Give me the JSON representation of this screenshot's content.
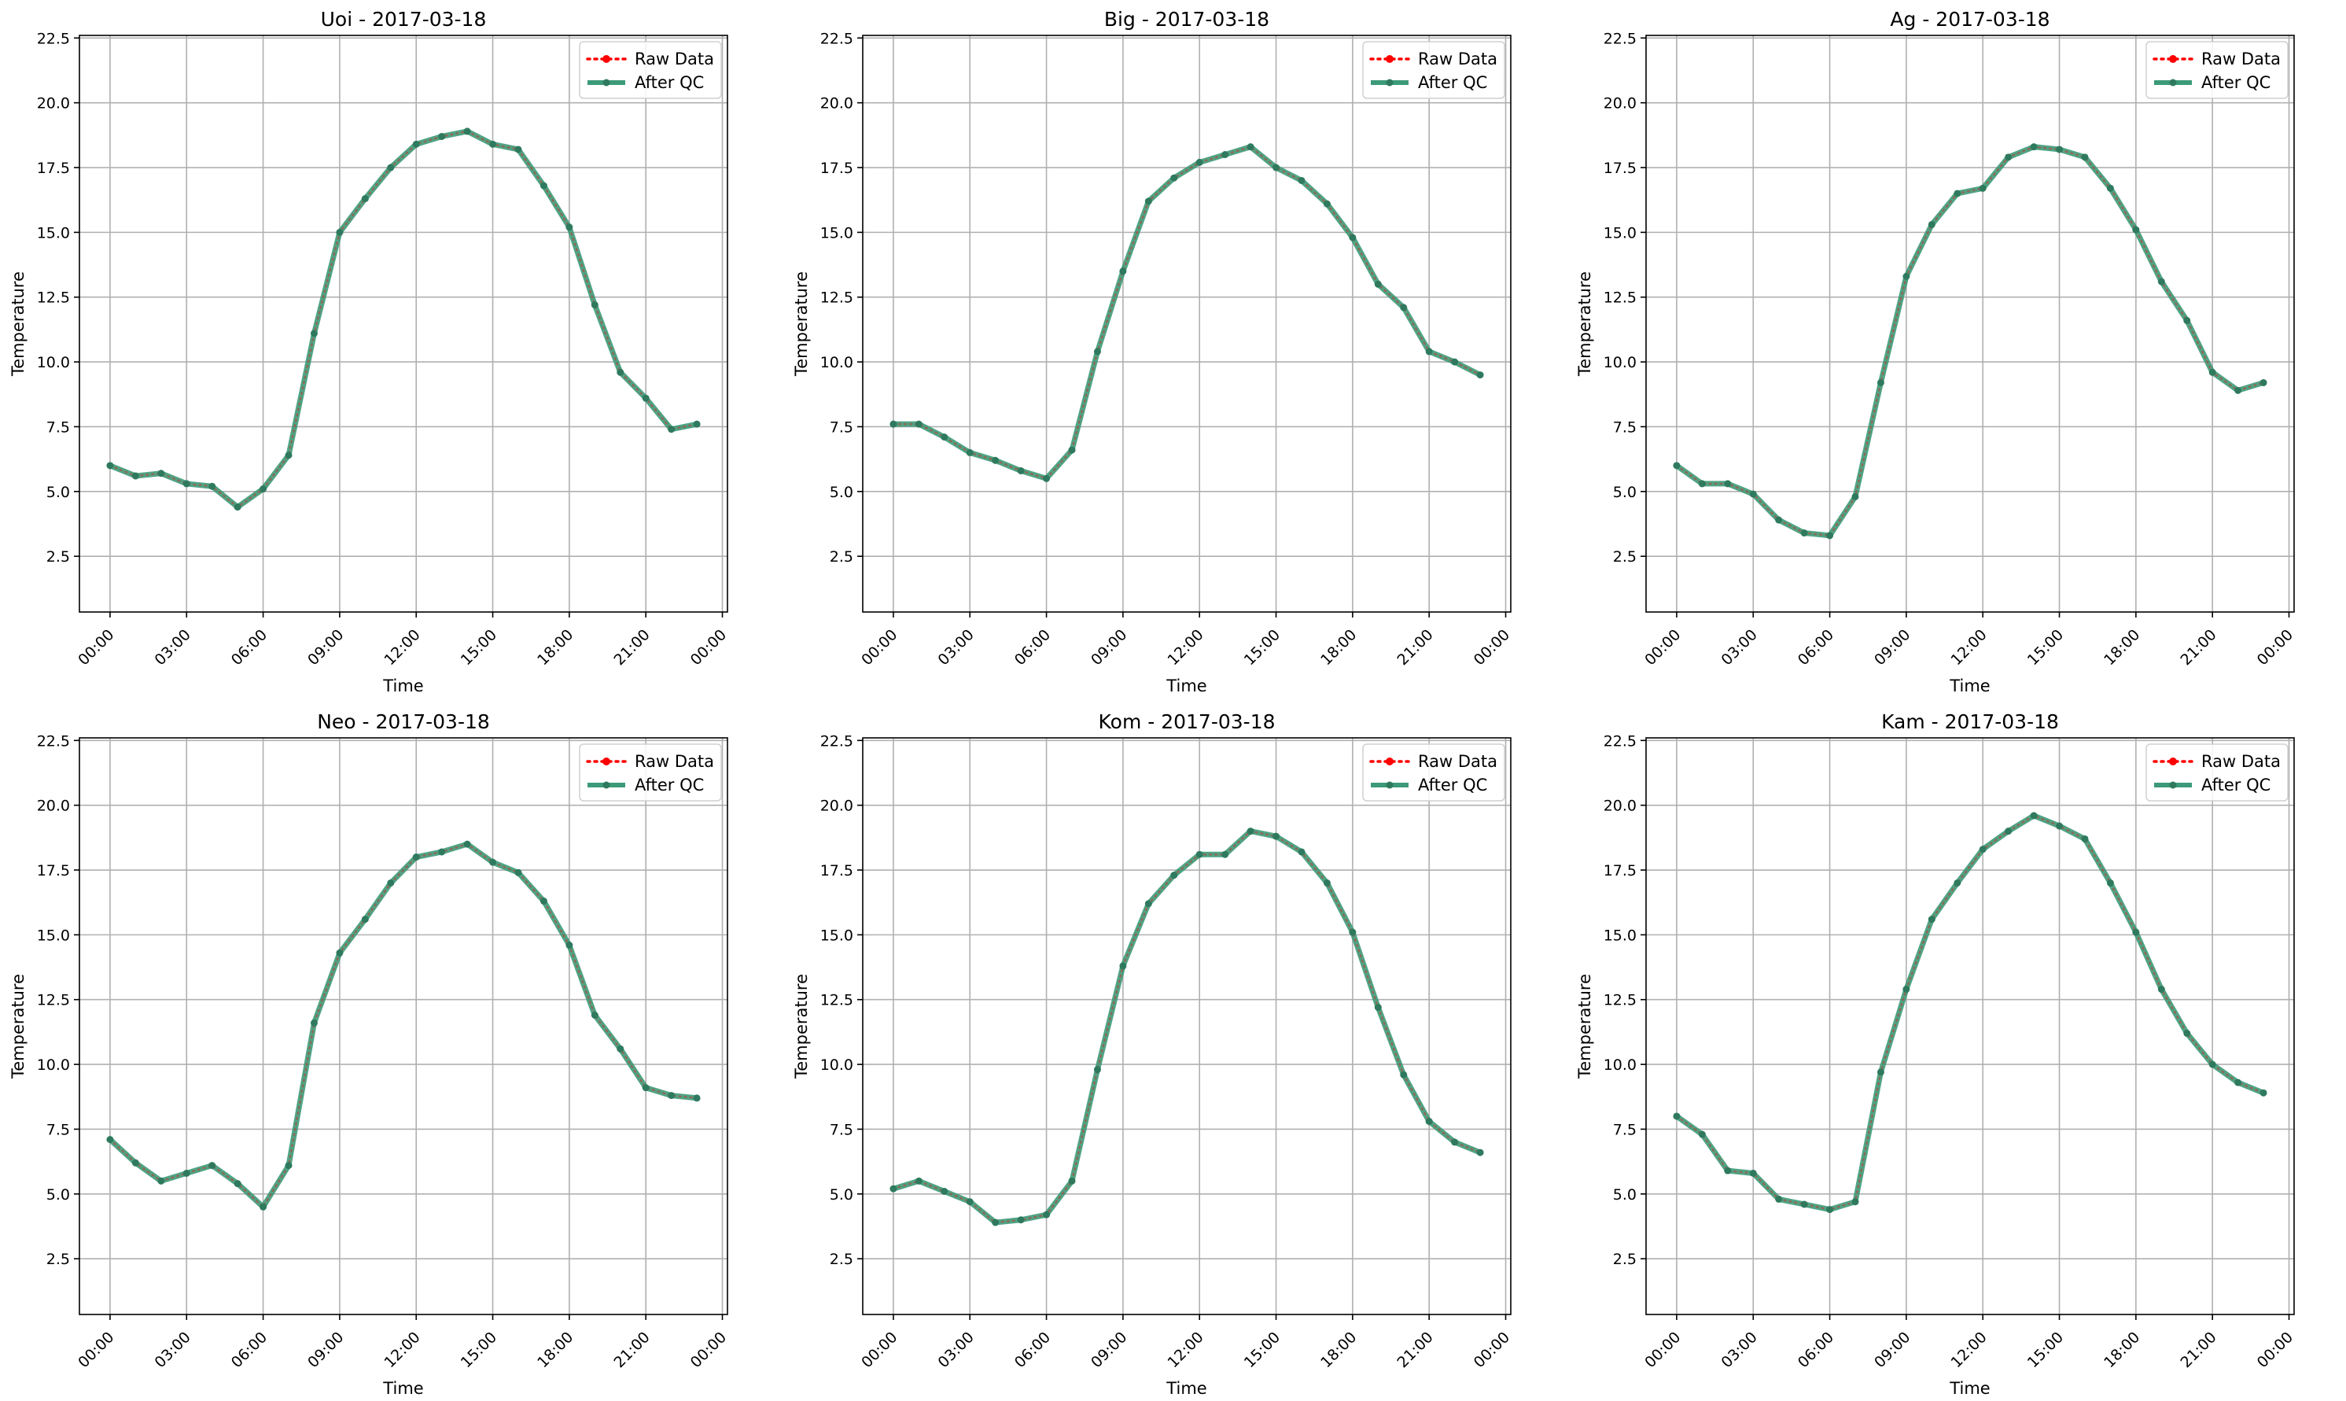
{
  "figure": {
    "xlabel": "Time",
    "ylabel": "Temperature",
    "legend": {
      "placement": "upper-right",
      "entries": [
        {
          "label": "Raw Data",
          "style": "dotted-red-points"
        },
        {
          "label": "After QC",
          "style": "solid-green-points"
        }
      ]
    },
    "colors": {
      "raw": "#ff0000",
      "qc": "#2ca02c",
      "qc_line": "#3c9a78",
      "marker": "#2f7a5e"
    }
  },
  "chart_data": [
    {
      "type": "line",
      "title": "Uoi - 2017-03-18",
      "xlabel": "Time",
      "ylabel": "Temperature",
      "x_ticks": [
        "00:00",
        "03:00",
        "06:00",
        "09:00",
        "12:00",
        "15:00",
        "18:00",
        "21:00",
        "00:00"
      ],
      "y_ticks": [
        "2.5",
        "5.0",
        "7.5",
        "10.0",
        "12.5",
        "15.0",
        "17.5",
        "20.0",
        "22.5"
      ],
      "xlim_hours": [
        -1.2,
        24.2
      ],
      "ylim": [
        0.35,
        22.6
      ],
      "grid": true,
      "x_hours": [
        0,
        1,
        2,
        3,
        4,
        5,
        6,
        7,
        8,
        9,
        10,
        11,
        12,
        13,
        14,
        15,
        16,
        17,
        18,
        19,
        20,
        21,
        22,
        23
      ],
      "series": [
        {
          "name": "Raw Data",
          "values": [
            6.0,
            5.6,
            5.7,
            5.3,
            5.2,
            4.4,
            5.1,
            6.4,
            11.1,
            15.0,
            16.3,
            17.5,
            18.4,
            18.7,
            18.9,
            18.4,
            18.2,
            16.8,
            15.2,
            12.2,
            9.6,
            8.6,
            7.4,
            7.6
          ]
        },
        {
          "name": "After QC",
          "values": [
            6.0,
            5.6,
            5.7,
            5.3,
            5.2,
            4.4,
            5.1,
            6.4,
            11.1,
            15.0,
            16.3,
            17.5,
            18.4,
            18.7,
            18.9,
            18.4,
            18.2,
            16.8,
            15.2,
            12.2,
            9.6,
            8.6,
            7.4,
            7.6
          ]
        }
      ]
    },
    {
      "type": "line",
      "title": "Big - 2017-03-18",
      "xlabel": "Time",
      "ylabel": "Temperature",
      "x_ticks": [
        "00:00",
        "03:00",
        "06:00",
        "09:00",
        "12:00",
        "15:00",
        "18:00",
        "21:00",
        "00:00"
      ],
      "y_ticks": [
        "2.5",
        "5.0",
        "7.5",
        "10.0",
        "12.5",
        "15.0",
        "17.5",
        "20.0",
        "22.5"
      ],
      "xlim_hours": [
        -1.2,
        24.2
      ],
      "ylim": [
        0.35,
        22.6
      ],
      "grid": true,
      "x_hours": [
        0,
        1,
        2,
        3,
        4,
        5,
        6,
        7,
        8,
        9,
        10,
        11,
        12,
        13,
        14,
        15,
        16,
        17,
        18,
        19,
        20,
        21,
        22,
        23
      ],
      "series": [
        {
          "name": "Raw Data",
          "values": [
            7.6,
            7.6,
            7.1,
            6.5,
            6.2,
            5.8,
            5.5,
            6.6,
            10.4,
            13.5,
            16.2,
            17.1,
            17.7,
            18.0,
            18.3,
            17.5,
            17.0,
            16.1,
            14.8,
            13.0,
            12.1,
            10.4,
            10.0,
            9.5
          ]
        },
        {
          "name": "After QC",
          "values": [
            7.6,
            7.6,
            7.1,
            6.5,
            6.2,
            5.8,
            5.5,
            6.6,
            10.4,
            13.5,
            16.2,
            17.1,
            17.7,
            18.0,
            18.3,
            17.5,
            17.0,
            16.1,
            14.8,
            13.0,
            12.1,
            10.4,
            10.0,
            9.5
          ]
        }
      ]
    },
    {
      "type": "line",
      "title": "Ag - 2017-03-18",
      "xlabel": "Time",
      "ylabel": "Temperature",
      "x_ticks": [
        "00:00",
        "03:00",
        "06:00",
        "09:00",
        "12:00",
        "15:00",
        "18:00",
        "21:00",
        "00:00"
      ],
      "y_ticks": [
        "2.5",
        "5.0",
        "7.5",
        "10.0",
        "12.5",
        "15.0",
        "17.5",
        "20.0",
        "22.5"
      ],
      "xlim_hours": [
        -1.2,
        24.2
      ],
      "ylim": [
        0.35,
        22.6
      ],
      "grid": true,
      "x_hours": [
        0,
        1,
        2,
        3,
        4,
        5,
        6,
        7,
        8,
        9,
        10,
        11,
        12,
        13,
        14,
        15,
        16,
        17,
        18,
        19,
        20,
        21,
        22,
        23
      ],
      "series": [
        {
          "name": "Raw Data",
          "values": [
            6.0,
            5.3,
            5.3,
            4.9,
            3.9,
            3.4,
            3.3,
            4.8,
            9.2,
            13.3,
            15.3,
            16.5,
            16.7,
            17.9,
            18.3,
            18.2,
            17.9,
            16.7,
            15.1,
            13.1,
            11.6,
            9.6,
            8.9,
            9.2
          ]
        },
        {
          "name": "After QC",
          "values": [
            6.0,
            5.3,
            5.3,
            4.9,
            3.9,
            3.4,
            3.3,
            4.8,
            9.2,
            13.3,
            15.3,
            16.5,
            16.7,
            17.9,
            18.3,
            18.2,
            17.9,
            16.7,
            15.1,
            13.1,
            11.6,
            9.6,
            8.9,
            9.2
          ]
        }
      ]
    },
    {
      "type": "line",
      "title": "Neo - 2017-03-18",
      "xlabel": "Time",
      "ylabel": "Temperature",
      "x_ticks": [
        "00:00",
        "03:00",
        "06:00",
        "09:00",
        "12:00",
        "15:00",
        "18:00",
        "21:00",
        "00:00"
      ],
      "y_ticks": [
        "2.5",
        "5.0",
        "7.5",
        "10.0",
        "12.5",
        "15.0",
        "17.5",
        "20.0",
        "22.5"
      ],
      "xlim_hours": [
        -1.2,
        24.2
      ],
      "ylim": [
        0.35,
        22.6
      ],
      "grid": true,
      "x_hours": [
        0,
        1,
        2,
        3,
        4,
        5,
        6,
        7,
        8,
        9,
        10,
        11,
        12,
        13,
        14,
        15,
        16,
        17,
        18,
        19,
        20,
        21,
        22,
        23
      ],
      "series": [
        {
          "name": "Raw Data",
          "values": [
            7.1,
            6.2,
            5.5,
            5.8,
            6.1,
            5.4,
            4.5,
            6.1,
            11.6,
            14.3,
            15.6,
            17.0,
            18.0,
            18.2,
            18.5,
            17.8,
            17.4,
            16.3,
            14.6,
            11.9,
            10.6,
            9.1,
            8.8,
            8.7
          ]
        },
        {
          "name": "After QC",
          "values": [
            7.1,
            6.2,
            5.5,
            5.8,
            6.1,
            5.4,
            4.5,
            6.1,
            11.6,
            14.3,
            15.6,
            17.0,
            18.0,
            18.2,
            18.5,
            17.8,
            17.4,
            16.3,
            14.6,
            11.9,
            10.6,
            9.1,
            8.8,
            8.7
          ]
        }
      ]
    },
    {
      "type": "line",
      "title": "Kom - 2017-03-18",
      "xlabel": "Time",
      "ylabel": "Temperature",
      "x_ticks": [
        "00:00",
        "03:00",
        "06:00",
        "09:00",
        "12:00",
        "15:00",
        "18:00",
        "21:00",
        "00:00"
      ],
      "y_ticks": [
        "2.5",
        "5.0",
        "7.5",
        "10.0",
        "12.5",
        "15.0",
        "17.5",
        "20.0",
        "22.5"
      ],
      "xlim_hours": [
        -1.2,
        24.2
      ],
      "ylim": [
        0.35,
        22.6
      ],
      "grid": true,
      "x_hours": [
        0,
        1,
        2,
        3,
        4,
        5,
        6,
        7,
        8,
        9,
        10,
        11,
        12,
        13,
        14,
        15,
        16,
        17,
        18,
        19,
        20,
        21,
        22,
        23
      ],
      "series": [
        {
          "name": "Raw Data",
          "values": [
            5.2,
            5.5,
            5.1,
            4.7,
            3.9,
            4.0,
            4.2,
            5.5,
            9.8,
            13.8,
            16.2,
            17.3,
            18.1,
            18.1,
            19.0,
            18.8,
            18.2,
            17.0,
            15.1,
            12.2,
            9.6,
            7.8,
            7.0,
            6.6
          ]
        },
        {
          "name": "After QC",
          "values": [
            5.2,
            5.5,
            5.1,
            4.7,
            3.9,
            4.0,
            4.2,
            5.5,
            9.8,
            13.8,
            16.2,
            17.3,
            18.1,
            18.1,
            19.0,
            18.8,
            18.2,
            17.0,
            15.1,
            12.2,
            9.6,
            7.8,
            7.0,
            6.6
          ]
        }
      ]
    },
    {
      "type": "line",
      "title": "Kam - 2017-03-18",
      "xlabel": "Time",
      "ylabel": "Temperature",
      "x_ticks": [
        "00:00",
        "03:00",
        "06:00",
        "09:00",
        "12:00",
        "15:00",
        "18:00",
        "21:00",
        "00:00"
      ],
      "y_ticks": [
        "2.5",
        "5.0",
        "7.5",
        "10.0",
        "12.5",
        "15.0",
        "17.5",
        "20.0",
        "22.5"
      ],
      "xlim_hours": [
        -1.2,
        24.2
      ],
      "ylim": [
        0.35,
        22.6
      ],
      "grid": true,
      "x_hours": [
        0,
        1,
        2,
        3,
        4,
        5,
        6,
        7,
        8,
        9,
        10,
        11,
        12,
        13,
        14,
        15,
        16,
        17,
        18,
        19,
        20,
        21,
        22,
        23
      ],
      "series": [
        {
          "name": "Raw Data",
          "values": [
            8.0,
            7.3,
            5.9,
            5.8,
            4.8,
            4.6,
            4.4,
            4.7,
            9.7,
            12.9,
            15.6,
            17.0,
            18.3,
            19.0,
            19.6,
            19.2,
            18.7,
            17.0,
            15.1,
            12.9,
            11.2,
            10.0,
            9.3,
            8.9
          ]
        },
        {
          "name": "After QC",
          "values": [
            8.0,
            7.3,
            5.9,
            5.8,
            4.8,
            4.6,
            4.4,
            4.7,
            9.7,
            12.9,
            15.6,
            17.0,
            18.3,
            19.0,
            19.6,
            19.2,
            18.7,
            17.0,
            15.1,
            12.9,
            11.2,
            10.0,
            9.3,
            8.9
          ]
        }
      ]
    }
  ]
}
